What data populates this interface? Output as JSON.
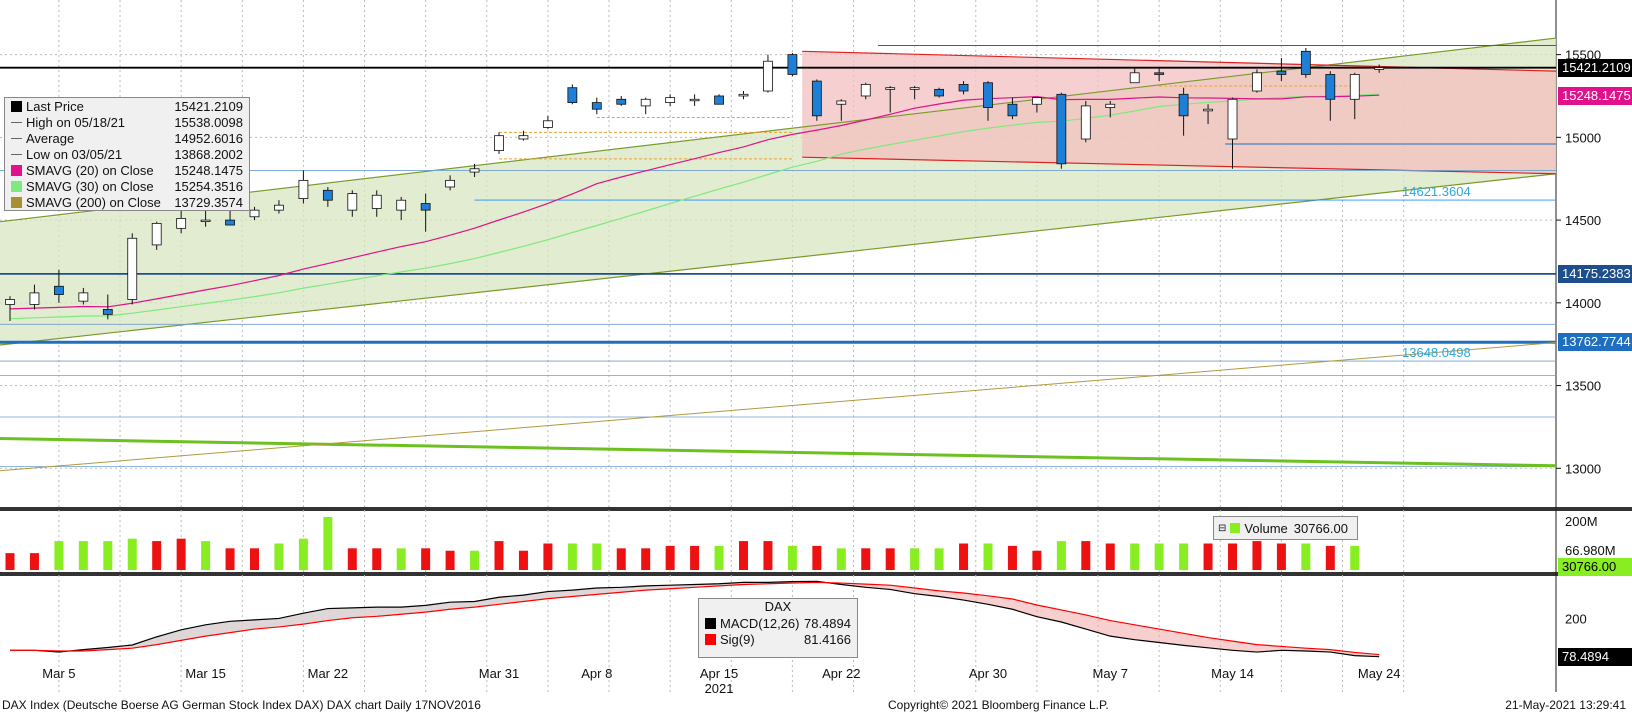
{
  "chart_data": [
    {
      "type": "candlestick",
      "ylim": [
        12760,
        15830
      ],
      "yticks": [
        13000,
        13500,
        14000,
        14500,
        15000,
        15500
      ],
      "candles": [
        {
          "x": "Mar 3",
          "o": 13990,
          "h": 14040,
          "l": 13890,
          "c": 14020
        },
        {
          "x": "Mar 4",
          "o": 13990,
          "h": 14110,
          "l": 13960,
          "c": 14060
        },
        {
          "x": "Mar 5",
          "o": 14100,
          "h": 14200,
          "l": 14000,
          "c": 14050
        },
        {
          "x": "Mar 8",
          "o": 14010,
          "h": 14090,
          "l": 13990,
          "c": 14060
        },
        {
          "x": "Mar 9",
          "o": 13960,
          "h": 14050,
          "l": 13900,
          "c": 13930
        },
        {
          "x": "Mar 10",
          "o": 14020,
          "h": 14420,
          "l": 13990,
          "c": 14390
        },
        {
          "x": "Mar 11",
          "o": 14350,
          "h": 14490,
          "l": 14320,
          "c": 14480
        },
        {
          "x": "Mar 12",
          "o": 14450,
          "h": 14560,
          "l": 14420,
          "c": 14510
        },
        {
          "x": "Mar 15",
          "o": 14500,
          "h": 14580,
          "l": 14460,
          "c": 14500
        },
        {
          "x": "Mar 16",
          "o": 14500,
          "h": 14600,
          "l": 14470,
          "c": 14470
        },
        {
          "x": "Mar 17",
          "o": 14520,
          "h": 14580,
          "l": 14500,
          "c": 14560
        },
        {
          "x": "Mar 18",
          "o": 14560,
          "h": 14620,
          "l": 14540,
          "c": 14590
        },
        {
          "x": "Mar 19",
          "o": 14630,
          "h": 14800,
          "l": 14600,
          "c": 14740
        },
        {
          "x": "Mar 22",
          "o": 14680,
          "h": 14700,
          "l": 14580,
          "c": 14620
        },
        {
          "x": "Mar 23",
          "o": 14560,
          "h": 14680,
          "l": 14520,
          "c": 14660
        },
        {
          "x": "Mar 24",
          "o": 14570,
          "h": 14680,
          "l": 14520,
          "c": 14650
        },
        {
          "x": "Mar 25",
          "o": 14560,
          "h": 14640,
          "l": 14500,
          "c": 14620
        },
        {
          "x": "Mar 26",
          "o": 14600,
          "h": 14660,
          "l": 14430,
          "c": 14560
        },
        {
          "x": "Mar 29",
          "o": 14700,
          "h": 14770,
          "l": 14680,
          "c": 14740
        },
        {
          "x": "Mar 30",
          "o": 14790,
          "h": 14840,
          "l": 14760,
          "c": 14810
        },
        {
          "x": "Mar 31",
          "o": 14920,
          "h": 15030,
          "l": 14900,
          "c": 15010
        },
        {
          "x": "Apr 1",
          "o": 14990,
          "h": 15040,
          "l": 14980,
          "c": 15010
        },
        {
          "x": "Apr 6",
          "o": 15060,
          "h": 15130,
          "l": 15050,
          "c": 15100
        },
        {
          "x": "Apr 7",
          "o": 15300,
          "h": 15320,
          "l": 15200,
          "c": 15210
        },
        {
          "x": "Apr 8",
          "o": 15210,
          "h": 15240,
          "l": 15140,
          "c": 15170
        },
        {
          "x": "Apr 9",
          "o": 15230,
          "h": 15250,
          "l": 15190,
          "c": 15200
        },
        {
          "x": "Apr 12",
          "o": 15190,
          "h": 15240,
          "l": 15140,
          "c": 15230
        },
        {
          "x": "Apr 13",
          "o": 15210,
          "h": 15260,
          "l": 15190,
          "c": 15240
        },
        {
          "x": "Apr 14",
          "o": 15230,
          "h": 15260,
          "l": 15190,
          "c": 15230
        },
        {
          "x": "Apr 15",
          "o": 15250,
          "h": 15260,
          "l": 15200,
          "c": 15200
        },
        {
          "x": "Apr 16",
          "o": 15250,
          "h": 15280,
          "l": 15230,
          "c": 15260
        },
        {
          "x": "Apr 19",
          "o": 15280,
          "h": 15500,
          "l": 15270,
          "c": 15460
        },
        {
          "x": "Apr 20",
          "o": 15500,
          "h": 15510,
          "l": 15370,
          "c": 15380
        },
        {
          "x": "Apr 21",
          "o": 15340,
          "h": 15350,
          "l": 15100,
          "c": 15130
        },
        {
          "x": "Apr 22",
          "o": 15200,
          "h": 15230,
          "l": 15100,
          "c": 15220
        },
        {
          "x": "Apr 23",
          "o": 15250,
          "h": 15330,
          "l": 15230,
          "c": 15320
        },
        {
          "x": "Apr 26",
          "o": 15290,
          "h": 15310,
          "l": 15150,
          "c": 15300
        },
        {
          "x": "Apr 27",
          "o": 15290,
          "h": 15310,
          "l": 15230,
          "c": 15300
        },
        {
          "x": "Apr 28",
          "o": 15290,
          "h": 15300,
          "l": 15240,
          "c": 15250
        },
        {
          "x": "Apr 29",
          "o": 15320,
          "h": 15340,
          "l": 15260,
          "c": 15280
        },
        {
          "x": "Apr 30",
          "o": 15330,
          "h": 15340,
          "l": 15100,
          "c": 15180
        },
        {
          "x": "May 3",
          "o": 15200,
          "h": 15240,
          "l": 15110,
          "c": 15130
        },
        {
          "x": "May 4",
          "o": 15200,
          "h": 15240,
          "l": 15150,
          "c": 15240
        },
        {
          "x": "May 5",
          "o": 15260,
          "h": 15270,
          "l": 14810,
          "c": 14840
        },
        {
          "x": "May 6",
          "o": 14990,
          "h": 15220,
          "l": 14970,
          "c": 15190
        },
        {
          "x": "May 7",
          "o": 15180,
          "h": 15220,
          "l": 15120,
          "c": 15200
        },
        {
          "x": "May 10",
          "o": 15330,
          "h": 15420,
          "l": 15330,
          "c": 15390
        },
        {
          "x": "May 11",
          "o": 15390,
          "h": 15420,
          "l": 15340,
          "c": 15380
        },
        {
          "x": "May 12",
          "o": 15260,
          "h": 15300,
          "l": 15010,
          "c": 15130
        },
        {
          "x": "May 13",
          "o": 15160,
          "h": 15200,
          "l": 15080,
          "c": 15170
        },
        {
          "x": "May 14",
          "o": 14990,
          "h": 15240,
          "l": 14810,
          "c": 15230
        },
        {
          "x": "May 17",
          "o": 15280,
          "h": 15410,
          "l": 15270,
          "c": 15390
        },
        {
          "x": "May 18",
          "o": 15400,
          "h": 15480,
          "l": 15340,
          "c": 15380
        },
        {
          "x": "May 19",
          "o": 15520,
          "h": 15540,
          "l": 15360,
          "c": 15380
        },
        {
          "x": "May 20",
          "o": 15380,
          "h": 15400,
          "l": 15100,
          "c": 15230
        },
        {
          "x": "May 21",
          "o": 15230,
          "h": 15390,
          "l": 15110,
          "c": 15380
        },
        {
          "x": "May 24",
          "o": 15410,
          "h": 15440,
          "l": 15390,
          "c": 15421
        }
      ],
      "legend": [
        {
          "name": "Last Price",
          "value": "15421.2109",
          "color": "#000000"
        },
        {
          "name": "High on 05/18/21",
          "value": "15538.0098",
          "color": "#555555"
        },
        {
          "name": "Average",
          "value": "14952.6016",
          "color": "#555555"
        },
        {
          "name": "Low on 03/05/21",
          "value": "13868.2002",
          "color": "#555555"
        },
        {
          "name": "SMAVG (20)  on Close",
          "value": "15248.1475",
          "color": "#e0118a"
        },
        {
          "name": "SMAVG (30)  on Close",
          "value": "15254.3516",
          "color": "#7fe97f"
        },
        {
          "name": "SMAVG (200)  on Close",
          "value": "13729.3574",
          "color": "#a89030"
        }
      ],
      "price_tags": [
        {
          "value": "15421.2109",
          "bg": "#000000",
          "fg": "#ffffff",
          "y": 15421
        },
        {
          "value": "15248.1475",
          "bg": "#e0118a",
          "fg": "#ffffff",
          "y": 15248
        },
        {
          "value": "14175.2383",
          "bg": "#1e4f8c",
          "fg": "#ffffff",
          "y": 14175
        },
        {
          "value": "13762.7744",
          "bg": "#1e6fbf",
          "fg": "#ffffff",
          "y": 13762
        }
      ],
      "level_labels": [
        {
          "value": "14621.3604",
          "y": 14621
        },
        {
          "value": "13648.0498",
          "y": 13648
        }
      ]
    },
    {
      "type": "bar",
      "legend_label": "Volume",
      "legend_value": "30766.00",
      "yticks_labels": [
        "200M",
        "66.980M"
      ],
      "last_tag": "30766.00",
      "values": [
        35,
        35,
        60,
        60,
        60,
        65,
        60,
        65,
        60,
        45,
        45,
        55,
        65,
        110,
        45,
        45,
        45,
        45,
        40,
        40,
        60,
        40,
        55,
        55,
        55,
        45,
        45,
        50,
        50,
        50,
        60,
        60,
        50,
        50,
        45,
        45,
        45,
        45,
        45,
        55,
        55,
        50,
        40,
        60,
        60,
        55,
        55,
        55,
        55,
        55,
        55,
        60,
        55,
        55,
        50,
        50,
        0
      ],
      "colors": [
        "r",
        "r",
        "g",
        "g",
        "g",
        "g",
        "r",
        "r",
        "g",
        "r",
        "r",
        "g",
        "g",
        "g",
        "r",
        "r",
        "g",
        "r",
        "r",
        "g",
        "r",
        "r",
        "r",
        "g",
        "g",
        "r",
        "r",
        "r",
        "r",
        "g",
        "r",
        "r",
        "g",
        "r",
        "g",
        "r",
        "r",
        "g",
        "g",
        "r",
        "g",
        "r",
        "r",
        "g",
        "r",
        "r",
        "g",
        "g",
        "g",
        "r",
        "r",
        "r",
        "r",
        "g",
        "r",
        "g",
        "r"
      ]
    },
    {
      "type": "line",
      "box_title": "DAX",
      "yticks_labels": [
        "200"
      ],
      "series": [
        {
          "name": "MACD(12,26)",
          "value": "78.4894",
          "color": "#000000",
          "values": [
            110,
            110,
            105,
            112,
            118,
            125,
            148,
            168,
            182,
            192,
            196,
            200,
            215,
            228,
            230,
            232,
            232,
            237,
            246,
            248,
            260,
            266,
            276,
            280,
            286,
            288,
            292,
            294,
            296,
            298,
            302,
            302,
            304,
            305,
            296,
            288,
            282,
            270,
            262,
            252,
            240,
            226,
            205,
            190,
            170,
            150,
            140,
            132,
            124,
            117,
            110,
            105,
            110,
            108,
            105,
            95,
            92
          ]
        },
        {
          "name": "Sig(9)",
          "value": "81.4166",
          "color": "#ff0000",
          "values": [
            110,
            110,
            108,
            108,
            112,
            116,
            126,
            138,
            150,
            160,
            170,
            176,
            184,
            194,
            202,
            206,
            212,
            218,
            226,
            232,
            240,
            248,
            256,
            262,
            268,
            274,
            280,
            284,
            288,
            292,
            296,
            298,
            300,
            302,
            300,
            297,
            294,
            286,
            278,
            272,
            264,
            255,
            238,
            224,
            210,
            194,
            182,
            170,
            158,
            146,
            136,
            126,
            121,
            116,
            112,
            104,
            98
          ]
        }
      ],
      "last_tag": "78.4894"
    }
  ],
  "x_axis": {
    "labels": [
      {
        "text": "Mar 5",
        "i": 2
      },
      {
        "text": "Mar 15",
        "i": 8
      },
      {
        "text": "Mar 22",
        "i": 13
      },
      {
        "text": "Mar 31",
        "i": 20
      },
      {
        "text": "Apr 8",
        "i": 24
      },
      {
        "text": "Apr 15",
        "i": 29
      },
      {
        "text": "Apr 22",
        "i": 34
      },
      {
        "text": "Apr 30",
        "i": 40
      },
      {
        "text": "May 7",
        "i": 45
      },
      {
        "text": "May 14",
        "i": 50
      },
      {
        "text": "May 24",
        "i": 56
      }
    ],
    "year_label": "2021"
  },
  "footer": {
    "left": "DAX Index (Deutsche Boerse AG German Stock Index DAX) DAX chart  Daily 17NOV2016",
    "center": "Copyright© 2021 Bloomberg Finance L.P.",
    "right": "21-May-2021 13:29:41"
  },
  "colors": {
    "up_fill": "#ffffff",
    "down_fill": "#1e7fd6",
    "vol_red": "#ee1111",
    "vol_green": "#88ee22",
    "channel_green": "#d7e6c0",
    "channel_red": "#f3c0c0"
  }
}
